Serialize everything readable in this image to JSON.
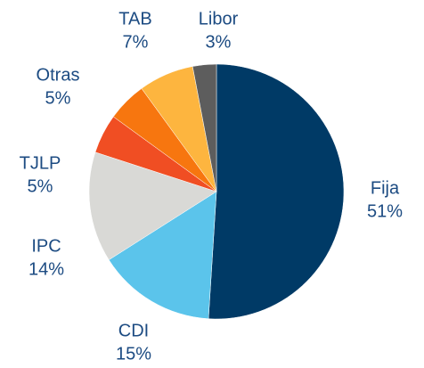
{
  "chart_data": {
    "type": "pie",
    "categories": [
      "Fija",
      "CDI",
      "IPC",
      "TJLP",
      "Otras",
      "TAB",
      "Libor"
    ],
    "values": [
      51,
      15,
      14,
      5,
      5,
      7,
      3
    ],
    "value_labels": [
      "51%",
      "15%",
      "14%",
      "5%",
      "5%",
      "7%",
      "3%"
    ],
    "colors": [
      "#003a66",
      "#5bc4eb",
      "#d9d9d6",
      "#f04e23",
      "#f7760f",
      "#fdb53f",
      "#5d5d5d"
    ]
  }
}
